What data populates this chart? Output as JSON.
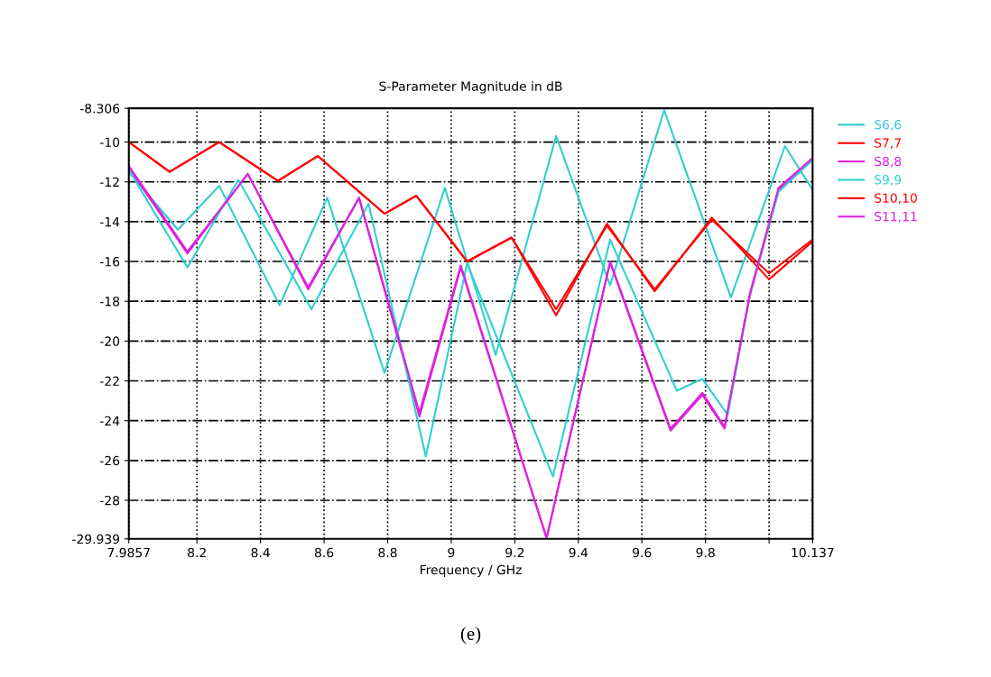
{
  "chart_data": {
    "type": "line",
    "title": "S-Parameter Magnitude in dB",
    "xlabel": "Frequency / GHz",
    "annotations": [
      "(e)"
    ],
    "xlim": [
      7.9857,
      10.137
    ],
    "ylim": [
      -29.939,
      -8.306
    ],
    "xticks": [
      7.9857,
      8.2,
      8.4,
      8.6,
      8.8,
      9,
      9.2,
      9.4,
      9.6,
      9.8,
      {
        "value": 10,
        "label": null
      },
      10.137
    ],
    "yticks": [
      {
        "value": -8.306,
        "label": "-8.306"
      },
      -10,
      -12,
      -14,
      -16,
      -18,
      -20,
      -22,
      -24,
      -26,
      -28,
      -29.939
    ],
    "grid": true,
    "legend": "top right",
    "line_style": "solid",
    "marker": "none",
    "series": [
      {
        "name": "S6,6",
        "color": "#33cccc",
        "x": [
          7.9857,
          8.14,
          8.27,
          8.46,
          8.61,
          8.79,
          8.98,
          9.14,
          9.33,
          9.5,
          9.67,
          9.88,
          10.05,
          10.137
        ],
        "values": [
          -11.5,
          -14.4,
          -12.2,
          -18.2,
          -12.8,
          -21.6,
          -12.3,
          -20.7,
          -9.7,
          -17.2,
          -8.4,
          -17.8,
          -10.2,
          -12.4
        ]
      },
      {
        "name": "S7,7",
        "color": "#ff0000",
        "x": [
          7.9857,
          8.114,
          8.27,
          8.455,
          8.58,
          8.79,
          8.89,
          9.05,
          9.19,
          9.33,
          9.49,
          9.64,
          9.82,
          10.0,
          10.137
        ],
        "values": [
          -10,
          -11.5,
          -10,
          -11.95,
          -10.7,
          -13.6,
          -12.7,
          -16.0,
          -14.8,
          -18.4,
          -14.2,
          -17.4,
          -13.9,
          -16.6,
          -14.9
        ]
      },
      {
        "name": "S8,8",
        "color": "#dd22dd",
        "x": [
          7.9857,
          8.17,
          8.36,
          8.55,
          8.71,
          8.9,
          9.03,
          9.3,
          9.5,
          9.69,
          9.79,
          9.86,
          9.94,
          10.03,
          10.137
        ],
        "values": [
          -11.3,
          -15.6,
          -11.6,
          -17.4,
          -12.8,
          -23.8,
          -16.3,
          -29.9,
          -16.05,
          -24.5,
          -22.7,
          -24.4,
          -17.7,
          -12.4,
          -10.9
        ]
      },
      {
        "name": "S9,9",
        "color": "#2fd0d0",
        "x": [
          7.9857,
          8.17,
          8.33,
          8.56,
          8.74,
          8.92,
          9.05,
          9.32,
          9.5,
          9.71,
          9.79,
          9.87,
          9.94,
          10.03,
          10.137
        ],
        "values": [
          -11.4,
          -16.3,
          -11.9,
          -18.4,
          -13.1,
          -25.8,
          -16.1,
          -26.8,
          -14.9,
          -22.5,
          -21.9,
          -23.7,
          -17.6,
          -12.5,
          -10.9
        ]
      },
      {
        "name": "S10,10",
        "color": "#ff0000",
        "x": [
          7.9857,
          8.114,
          8.27,
          8.455,
          8.58,
          8.79,
          8.89,
          9.05,
          9.19,
          9.33,
          9.49,
          9.64,
          9.82,
          10.0,
          10.137
        ],
        "values": [
          -10,
          -11.5,
          -10,
          -11.95,
          -10.7,
          -13.6,
          -12.7,
          -16.0,
          -14.8,
          -18.7,
          -14.1,
          -17.5,
          -13.8,
          -16.9,
          -15.0
        ]
      },
      {
        "name": "S11,11",
        "color": "#dd22dd",
        "x": [
          7.9857,
          8.17,
          8.36,
          8.55,
          8.71,
          8.9,
          9.03,
          9.3,
          9.5,
          9.69,
          9.79,
          9.86,
          9.94,
          10.03,
          10.137
        ],
        "values": [
          -11.2,
          -15.5,
          -11.6,
          -17.3,
          -12.8,
          -23.6,
          -16.2,
          -29.9,
          -16.0,
          -24.4,
          -22.6,
          -24.3,
          -17.6,
          -12.3,
          -10.8
        ]
      }
    ]
  }
}
